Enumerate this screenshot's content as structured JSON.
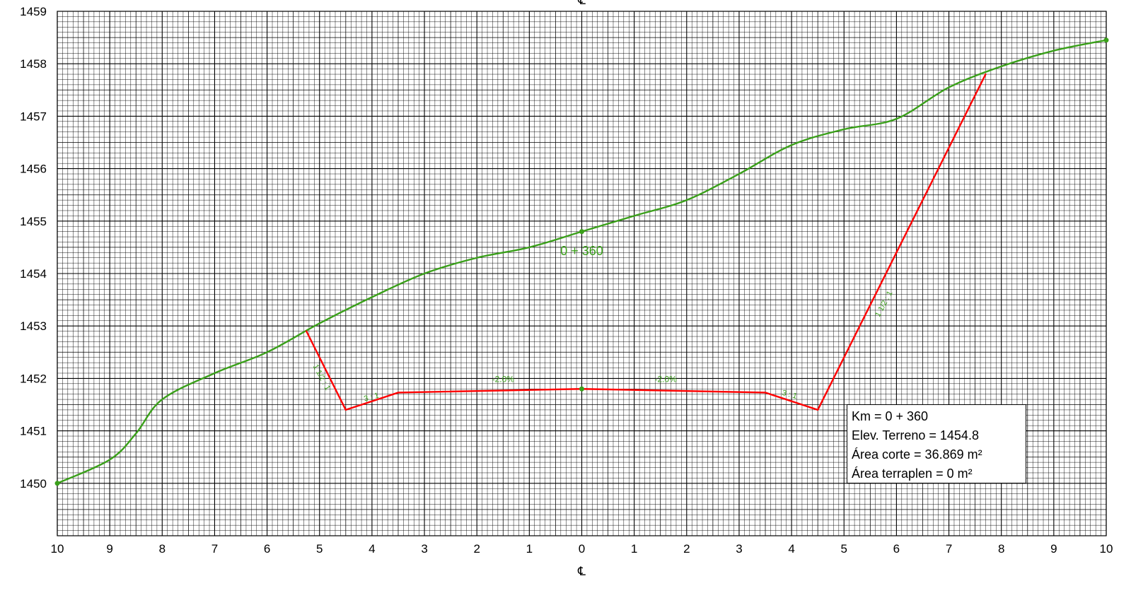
{
  "chart_data": {
    "type": "line",
    "title": "",
    "xlabel": "",
    "ylabel": "",
    "xlim": [
      -10,
      10
    ],
    "ylim": [
      1449,
      1459
    ],
    "x_tick_labels": [
      "10",
      "9",
      "8",
      "7",
      "6",
      "5",
      "4",
      "3",
      "2",
      "1",
      "0",
      "1",
      "2",
      "3",
      "4",
      "5",
      "6",
      "7",
      "8",
      "9",
      "10"
    ],
    "y_tick_labels": [
      "1450",
      "1451",
      "1452",
      "1453",
      "1454",
      "1455",
      "1456",
      "1457",
      "1458",
      "1459"
    ],
    "centerline_top_label": "℄",
    "centerline_bottom_label": "℄",
    "grid": true,
    "series": [
      {
        "color": "#3aa01a",
        "smooth": true,
        "points": [
          [
            -10,
            1450.0
          ],
          [
            -9,
            1450.45
          ],
          [
            -8.5,
            1450.95
          ],
          [
            -8,
            1451.6
          ],
          [
            -7,
            1452.1
          ],
          [
            -6,
            1452.5
          ],
          [
            -5,
            1453.05
          ],
          [
            -4,
            1453.55
          ],
          [
            -3,
            1454.0
          ],
          [
            -2,
            1454.3
          ],
          [
            -1,
            1454.5
          ],
          [
            0,
            1454.8
          ],
          [
            1,
            1455.1
          ],
          [
            2,
            1455.4
          ],
          [
            3,
            1455.9
          ],
          [
            4,
            1456.45
          ],
          [
            5,
            1456.75
          ],
          [
            6,
            1456.95
          ],
          [
            7,
            1457.55
          ],
          [
            8,
            1457.95
          ],
          [
            9,
            1458.25
          ],
          [
            10,
            1458.45
          ]
        ]
      },
      {
        "color": "#ff0000",
        "smooth": false,
        "points": [
          [
            -5.25,
            1452.9
          ],
          [
            -4.5,
            1451.4
          ],
          [
            -3.5,
            1451.73
          ],
          [
            0,
            1451.8
          ],
          [
            3.5,
            1451.73
          ],
          [
            4.5,
            1451.4
          ],
          [
            7.7,
            1457.8
          ]
        ]
      }
    ],
    "point_markers": [
      {
        "x": -10,
        "y": 1450.0,
        "color": "#3aa01a"
      },
      {
        "x": 0,
        "y": 1454.8,
        "color": "#3aa01a"
      },
      {
        "x": 10,
        "y": 1458.45,
        "color": "#3aa01a"
      },
      {
        "x": 0,
        "y": 1451.8,
        "color": "#3aa01a"
      }
    ],
    "annotations": [
      {
        "text": "0 + 360",
        "x": 0,
        "y": 1454.35,
        "rotation": 0,
        "size": 18
      },
      {
        "text": "-2.0%",
        "x": -1.5,
        "y": 1451.93,
        "rotation": 0,
        "size": 12
      },
      {
        "text": "-2.0%",
        "x": 1.6,
        "y": 1451.93,
        "rotation": 0,
        "size": 12
      },
      {
        "text": "3 : 1",
        "x": -4.0,
        "y": 1451.6,
        "rotation": -15,
        "size": 11
      },
      {
        "text": "3 : 1",
        "x": 3.95,
        "y": 1451.65,
        "rotation": 15,
        "size": 11
      },
      {
        "text": "1 1/2 : 1",
        "x": -5.0,
        "y": 1452.0,
        "rotation": 62,
        "size": 11
      },
      {
        "text": "1 1/2 : 1",
        "x": 5.8,
        "y": 1453.4,
        "rotation": -62,
        "size": 11
      }
    ]
  },
  "info_box": {
    "km": "Km = 0 + 360",
    "elev": "Elev. Terreno = 1454.8",
    "area_corte": "Área corte = 36.869 m²",
    "area_terraplen": "Área terraplen = 0 m²"
  }
}
